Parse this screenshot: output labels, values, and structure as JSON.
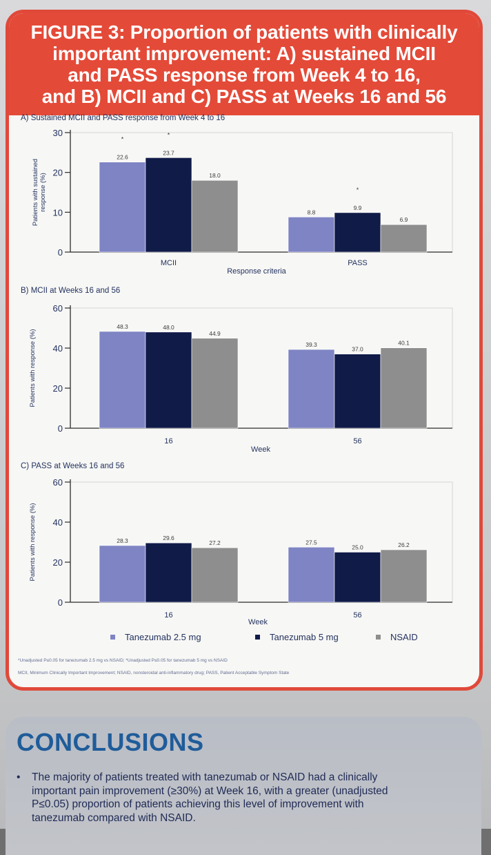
{
  "title_lines": [
    "FIGURE 3: Proportion of patients with clinically",
    "important improvement: A) sustained MCII",
    "and PASS response from Week 4 to 16,",
    "and B) MCII and C) PASS at Weeks 16 and 56"
  ],
  "colors": {
    "tanezumab_2_5": "#7f84c4",
    "tanezumab_5": "#101b48",
    "nsaid": "#8e8e8e",
    "title_band": "#e44a38",
    "axis_text": "#23325f"
  },
  "chart_data": [
    {
      "type": "bar",
      "title": "A) Sustained MCII and PASS response from Week 4 to 16",
      "xlabel": "Response criteria",
      "ylabel": [
        "Patients with sustained",
        "response (%)"
      ],
      "categories": [
        "MCII",
        "PASS"
      ],
      "ylim": [
        0,
        30
      ],
      "yticks": [
        0,
        10,
        20,
        30
      ],
      "series": [
        {
          "name": "Tanezumab 2.5 mg",
          "values": [
            22.6,
            8.8
          ],
          "labels": [
            "22.6",
            "8.8"
          ]
        },
        {
          "name": "Tanezumab 5 mg",
          "values": [
            23.7,
            9.9
          ],
          "labels": [
            "23.7",
            "9.9"
          ]
        },
        {
          "name": "NSAID",
          "values": [
            18.0,
            6.9
          ],
          "labels": [
            "18.0",
            "6.9"
          ]
        }
      ],
      "significance": [
        {
          "category": 0,
          "series": 0,
          "mark": "*"
        },
        {
          "category": 0,
          "series": 1,
          "mark": "*"
        },
        {
          "category": 1,
          "series": 1,
          "mark": "*"
        }
      ]
    },
    {
      "type": "bar",
      "title": "B) MCII at Weeks 16 and 56",
      "xlabel": "Week",
      "ylabel": [
        "Patients with response (%)"
      ],
      "categories": [
        "16",
        "56"
      ],
      "ylim": [
        0,
        60
      ],
      "yticks": [
        0,
        20,
        40,
        60
      ],
      "series": [
        {
          "name": "Tanezumab 2.5 mg",
          "values": [
            48.3,
            39.3
          ],
          "labels": [
            "48.3",
            "39.3"
          ]
        },
        {
          "name": "Tanezumab 5 mg",
          "values": [
            48.0,
            37.0
          ],
          "labels": [
            "48.0",
            "37.0"
          ]
        },
        {
          "name": "NSAID",
          "values": [
            44.9,
            40.1
          ],
          "labels": [
            "44.9",
            "40.1"
          ]
        }
      ],
      "significance": []
    },
    {
      "type": "bar",
      "title": "C) PASS at Weeks 16 and 56",
      "xlabel": "Week",
      "ylabel": [
        "Patients with response (%)"
      ],
      "categories": [
        "16",
        "56"
      ],
      "ylim": [
        0,
        60
      ],
      "yticks": [
        0,
        20,
        40,
        60
      ],
      "series": [
        {
          "name": "Tanezumab 2.5 mg",
          "values": [
            28.3,
            27.5
          ],
          "labels": [
            "28.3",
            "27.5"
          ]
        },
        {
          "name": "Tanezumab 5 mg",
          "values": [
            29.6,
            25.0
          ],
          "labels": [
            "29.6",
            "25.0"
          ]
        },
        {
          "name": "NSAID",
          "values": [
            27.2,
            26.2
          ],
          "labels": [
            "27.2",
            "26.2"
          ]
        }
      ],
      "significance": []
    }
  ],
  "legend": {
    "items": [
      "Tanezumab 2.5 mg",
      "Tanezumab 5 mg",
      "NSAID"
    ]
  },
  "footnotes": [
    "*Unadjusted P≤0.05 for tanezumab 2.5 mg vs NSAID; *Unadjusted P≤0.05 for tanezumab 5 mg vs NSAID",
    "MCII, Minimum Clinically Important Improvement; NSAID, nonsteroidal anti-inflammatory drug; PASS, Patient Acceptable Symptom State"
  ],
  "conclusions": {
    "heading": "CONCLUSIONS",
    "bullet_lines": [
      "The majority of patients treated with tanezumab or NSAID had a clinically",
      "important pain improvement (≥30%) at Week 16, with a greater (unadjusted",
      "P≤0.05) proportion of patients achieving this level of improvement with",
      "tanezumab compared with NSAID."
    ]
  }
}
